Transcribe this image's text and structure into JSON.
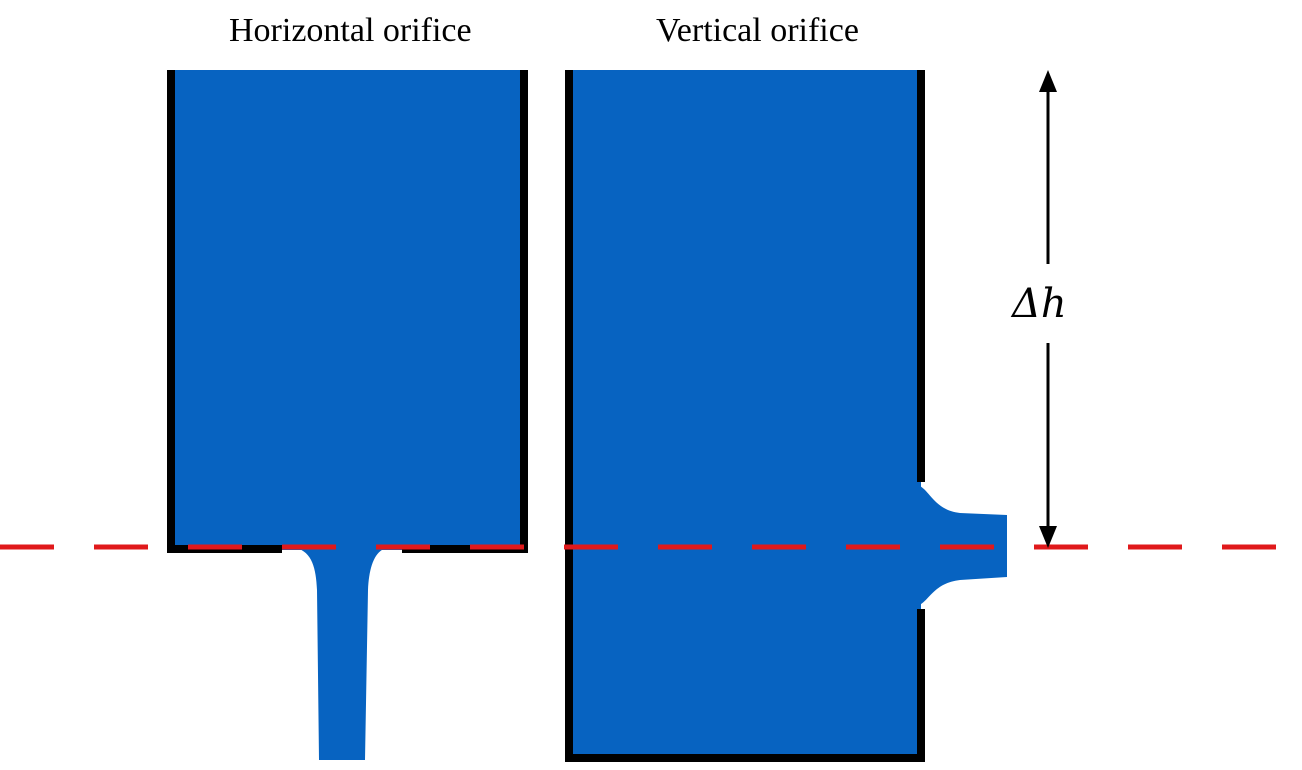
{
  "diagram": {
    "horizontal_orifice": {
      "title": "Horizontal orifice"
    },
    "vertical_orifice": {
      "title": "Vertical orifice"
    },
    "head_label": "Δh",
    "colors": {
      "water": "#0763C1",
      "wall": "#000000",
      "reference_line": "#E0191B",
      "arrow": "#000000"
    }
  }
}
